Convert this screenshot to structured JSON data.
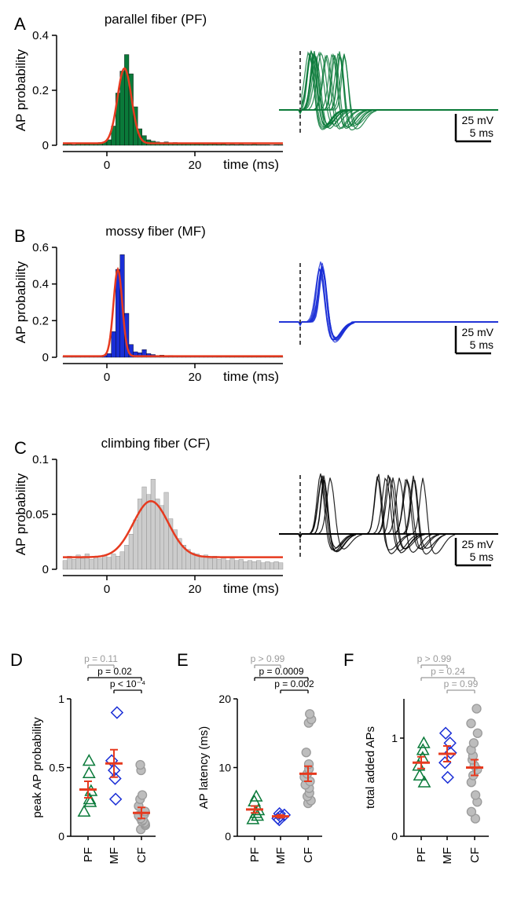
{
  "panels": {
    "A": {
      "label": "A",
      "title": "parallel fiber (PF)",
      "hist": {
        "xlim": [
          -10,
          40
        ],
        "ylim": [
          0,
          0.4
        ],
        "xticks": [
          0,
          20
        ],
        "yticks": [
          0,
          0.2,
          0.4
        ],
        "xlabel": "time (ms)",
        "ylabel": "AP probability",
        "fill_color": "#0a7a3a",
        "fit_color": "#e63a1f",
        "bin_w": 1,
        "bars": [
          [
            -10,
            0.003
          ],
          [
            -9,
            0.004
          ],
          [
            -8,
            0.002
          ],
          [
            -7,
            0.006
          ],
          [
            -6,
            0.005
          ],
          [
            -5,
            0.004
          ],
          [
            -4,
            0.008
          ],
          [
            -3,
            0.006
          ],
          [
            -2,
            0.01
          ],
          [
            -1,
            0.012
          ],
          [
            0,
            0.02
          ],
          [
            1,
            0.07
          ],
          [
            2,
            0.19
          ],
          [
            3,
            0.27
          ],
          [
            4,
            0.33
          ],
          [
            5,
            0.26
          ],
          [
            6,
            0.14
          ],
          [
            7,
            0.06
          ],
          [
            8,
            0.035
          ],
          [
            9,
            0.02
          ],
          [
            10,
            0.015
          ],
          [
            11,
            0.012
          ],
          [
            12,
            0.01
          ],
          [
            13,
            0.012
          ],
          [
            14,
            0.008
          ],
          [
            15,
            0.01
          ],
          [
            16,
            0.006
          ],
          [
            17,
            0.008
          ],
          [
            18,
            0.005
          ],
          [
            19,
            0.007
          ],
          [
            20,
            0.004
          ],
          [
            21,
            0.006
          ],
          [
            22,
            0.003
          ],
          [
            23,
            0.005
          ],
          [
            24,
            0.004
          ],
          [
            25,
            0.003
          ],
          [
            26,
            0.004
          ],
          [
            27,
            0.002
          ],
          [
            28,
            0.003
          ],
          [
            29,
            0.002
          ],
          [
            30,
            0.003
          ],
          [
            31,
            0.002
          ],
          [
            32,
            0.002
          ],
          [
            33,
            0.003
          ],
          [
            34,
            0.002
          ],
          [
            35,
            0.002
          ],
          [
            36,
            0.002
          ],
          [
            37,
            0.001
          ],
          [
            38,
            0.002
          ],
          [
            39,
            0.002
          ]
        ],
        "fit_peak_x": 4,
        "fit_peak_y": 0.28,
        "fit_sigma": 1.6,
        "fit_baseline": 0.007
      },
      "trace": {
        "color": "#0a7a3a",
        "scalebar_v": "25 mV",
        "scalebar_h": "5 ms"
      }
    },
    "B": {
      "label": "B",
      "title": "mossy fiber (MF)",
      "hist": {
        "xlim": [
          -10,
          40
        ],
        "ylim": [
          0,
          0.6
        ],
        "xticks": [
          0,
          20
        ],
        "yticks": [
          0,
          0.2,
          0.4,
          0.6
        ],
        "xlabel": "time (ms)",
        "ylabel": "AP probability",
        "fill_color": "#1a2ed6",
        "fit_color": "#e63a1f",
        "bin_w": 1,
        "bars": [
          [
            -10,
            0.004
          ],
          [
            -9,
            0.003
          ],
          [
            -8,
            0.005
          ],
          [
            -7,
            0.003
          ],
          [
            -6,
            0.004
          ],
          [
            -5,
            0.006
          ],
          [
            -4,
            0.005
          ],
          [
            -3,
            0.008
          ],
          [
            -2,
            0.007
          ],
          [
            -1,
            0.01
          ],
          [
            0,
            0.02
          ],
          [
            1,
            0.14
          ],
          [
            2,
            0.48
          ],
          [
            3,
            0.56
          ],
          [
            4,
            0.24
          ],
          [
            5,
            0.07
          ],
          [
            6,
            0.03
          ],
          [
            7,
            0.025
          ],
          [
            8,
            0.042
          ],
          [
            9,
            0.02
          ],
          [
            10,
            0.015
          ],
          [
            11,
            0.01
          ],
          [
            12,
            0.012
          ],
          [
            13,
            0.008
          ],
          [
            14,
            0.01
          ],
          [
            15,
            0.006
          ],
          [
            16,
            0.008
          ],
          [
            17,
            0.005
          ],
          [
            18,
            0.006
          ],
          [
            19,
            0.004
          ],
          [
            20,
            0.005
          ],
          [
            21,
            0.003
          ],
          [
            22,
            0.004
          ],
          [
            23,
            0.003
          ],
          [
            24,
            0.003
          ],
          [
            25,
            0.002
          ],
          [
            26,
            0.003
          ],
          [
            27,
            0.002
          ],
          [
            28,
            0.002
          ],
          [
            29,
            0.002
          ],
          [
            30,
            0.002
          ],
          [
            31,
            0.002
          ],
          [
            32,
            0.001
          ],
          [
            33,
            0.002
          ],
          [
            34,
            0.001
          ],
          [
            35,
            0.002
          ],
          [
            36,
            0.001
          ],
          [
            37,
            0.001
          ],
          [
            38,
            0.001
          ],
          [
            39,
            0.001
          ]
        ],
        "fit_peak_x": 2.5,
        "fit_peak_y": 0.48,
        "fit_sigma": 1.0,
        "fit_baseline": 0.006
      },
      "trace": {
        "color": "#1a2ed6",
        "scalebar_v": "25 mV",
        "scalebar_h": "5 ms"
      }
    },
    "C": {
      "label": "C",
      "title": "climbing fiber (CF)",
      "hist": {
        "xlim": [
          -10,
          40
        ],
        "ylim": [
          0,
          0.1
        ],
        "xticks": [
          0,
          20
        ],
        "yticks": [
          0,
          0.05,
          0.1
        ],
        "xlabel": "time (ms)",
        "ylabel": "AP probability",
        "fill_color": "#cccccc",
        "fill_stroke": "#888888",
        "fit_color": "#e63a1f",
        "bin_w": 1,
        "bars": [
          [
            -10,
            0.008
          ],
          [
            -9,
            0.012
          ],
          [
            -8,
            0.009
          ],
          [
            -7,
            0.013
          ],
          [
            -6,
            0.01
          ],
          [
            -5,
            0.014
          ],
          [
            -4,
            0.009
          ],
          [
            -3,
            0.012
          ],
          [
            -2,
            0.01
          ],
          [
            -1,
            0.013
          ],
          [
            0,
            0.011
          ],
          [
            1,
            0.014
          ],
          [
            2,
            0.012
          ],
          [
            3,
            0.016
          ],
          [
            4,
            0.022
          ],
          [
            5,
            0.032
          ],
          [
            6,
            0.045
          ],
          [
            7,
            0.064
          ],
          [
            8,
            0.075
          ],
          [
            9,
            0.068
          ],
          [
            10,
            0.082
          ],
          [
            11,
            0.064
          ],
          [
            12,
            0.058
          ],
          [
            13,
            0.07
          ],
          [
            14,
            0.046
          ],
          [
            15,
            0.036
          ],
          [
            16,
            0.028
          ],
          [
            17,
            0.022
          ],
          [
            18,
            0.018
          ],
          [
            19,
            0.015
          ],
          [
            20,
            0.014
          ],
          [
            21,
            0.012
          ],
          [
            22,
            0.013
          ],
          [
            23,
            0.01
          ],
          [
            24,
            0.012
          ],
          [
            25,
            0.009
          ],
          [
            26,
            0.011
          ],
          [
            27,
            0.008
          ],
          [
            28,
            0.01
          ],
          [
            29,
            0.008
          ],
          [
            30,
            0.009
          ],
          [
            31,
            0.007
          ],
          [
            32,
            0.008
          ],
          [
            33,
            0.007
          ],
          [
            34,
            0.008
          ],
          [
            35,
            0.006
          ],
          [
            36,
            0.007
          ],
          [
            37,
            0.006
          ],
          [
            38,
            0.007
          ],
          [
            39,
            0.006
          ]
        ],
        "fit_peak_x": 10,
        "fit_peak_y": 0.062,
        "fit_sigma": 4.0,
        "fit_baseline": 0.011
      },
      "trace": {
        "color": "#000000",
        "scalebar_v": "25 mV",
        "scalebar_h": "5 ms"
      }
    }
  },
  "scatter": {
    "categories": [
      "PF",
      "MF",
      "CF"
    ],
    "cat_colors": {
      "PF": "#0a7a3a",
      "MF": "#1a2ed6",
      "CF": "#9b9b9b"
    },
    "cat_marker": {
      "PF": "triangle",
      "MF": "diamond",
      "CF": "circle"
    },
    "mean_color": "#e63a1f",
    "label_fontsize": 14,
    "tick_fontsize": 13,
    "pval_color_sig": "#000000",
    "pval_color_ns": "#9b9b9b",
    "D": {
      "label": "D",
      "ylabel": "peak AP probability",
      "ylim": [
        0,
        1
      ],
      "yticks": [
        0,
        0.5,
        1
      ],
      "data": {
        "PF": [
          0.18,
          0.25,
          0.27,
          0.33,
          0.46,
          0.55
        ],
        "MF": [
          0.27,
          0.42,
          0.48,
          0.55,
          0.9
        ],
        "CF": [
          0.05,
          0.08,
          0.09,
          0.1,
          0.11,
          0.12,
          0.13,
          0.15,
          0.16,
          0.18,
          0.22,
          0.27,
          0.3,
          0.48,
          0.52
        ]
      },
      "means": {
        "PF": 0.34,
        "MF": 0.53,
        "CF": 0.17
      },
      "sems": {
        "PF": 0.06,
        "MF": 0.1,
        "CF": 0.04
      },
      "pvals": [
        {
          "a": "PF",
          "b": "MF",
          "text": "p = 0.11",
          "sig": false
        },
        {
          "a": "PF",
          "b": "CF",
          "text": "p = 0.02",
          "sig": true
        },
        {
          "a": "MF",
          "b": "CF",
          "text": "p < 10⁻⁴",
          "sig": true
        }
      ]
    },
    "E": {
      "label": "E",
      "ylabel": "AP latency (ms)",
      "ylim": [
        0,
        20
      ],
      "yticks": [
        0,
        10,
        20
      ],
      "data": {
        "PF": [
          2.5,
          3.0,
          3.4,
          3.8,
          5.1,
          5.8
        ],
        "MF": [
          2.4,
          2.6,
          2.9,
          3.1,
          3.3
        ],
        "CF": [
          4.8,
          5.2,
          5.8,
          6.3,
          7.0,
          7.5,
          8.0,
          8.6,
          9.1,
          9.8,
          10.5,
          12.2,
          16.5,
          17.0,
          17.8
        ]
      },
      "means": {
        "PF": 3.9,
        "MF": 2.9,
        "CF": 9.1
      },
      "sems": {
        "PF": 0.5,
        "MF": 0.2,
        "CF": 1.1
      },
      "pvals": [
        {
          "a": "PF",
          "b": "MF",
          "text": "p > 0.99",
          "sig": false
        },
        {
          "a": "PF",
          "b": "CF",
          "text": "p = 0.0009",
          "sig": true
        },
        {
          "a": "MF",
          "b": "CF",
          "text": "p = 0.002",
          "sig": true
        }
      ]
    },
    "F": {
      "label": "F",
      "ylabel": "total added APs",
      "ylim": [
        0,
        1.4
      ],
      "yticks": [
        0,
        1
      ],
      "data": {
        "PF": [
          0.55,
          0.62,
          0.72,
          0.8,
          0.88,
          0.95
        ],
        "MF": [
          0.6,
          0.75,
          0.85,
          0.95,
          1.05
        ],
        "CF": [
          0.18,
          0.25,
          0.35,
          0.42,
          0.55,
          0.62,
          0.68,
          0.72,
          0.78,
          0.82,
          0.88,
          0.95,
          1.05,
          1.15,
          1.3
        ]
      },
      "means": {
        "PF": 0.75,
        "MF": 0.84,
        "CF": 0.7
      },
      "sems": {
        "PF": 0.06,
        "MF": 0.08,
        "CF": 0.08
      },
      "pvals": [
        {
          "a": "PF",
          "b": "MF",
          "text": "p > 0.99",
          "sig": false
        },
        {
          "a": "PF",
          "b": "CF",
          "text": "p = 0.24",
          "sig": false
        },
        {
          "a": "MF",
          "b": "CF",
          "text": "p = 0.99",
          "sig": false
        }
      ]
    }
  },
  "layout": {
    "hist_w": 280,
    "hist_h": 140,
    "trace_w": 290,
    "trace_h": 150,
    "scatter_w": 170,
    "scatter_h": 200,
    "tick_fontsize": 15,
    "label_fontsize": 17,
    "title_fontsize": 17,
    "panel_label_fontsize": 22
  }
}
